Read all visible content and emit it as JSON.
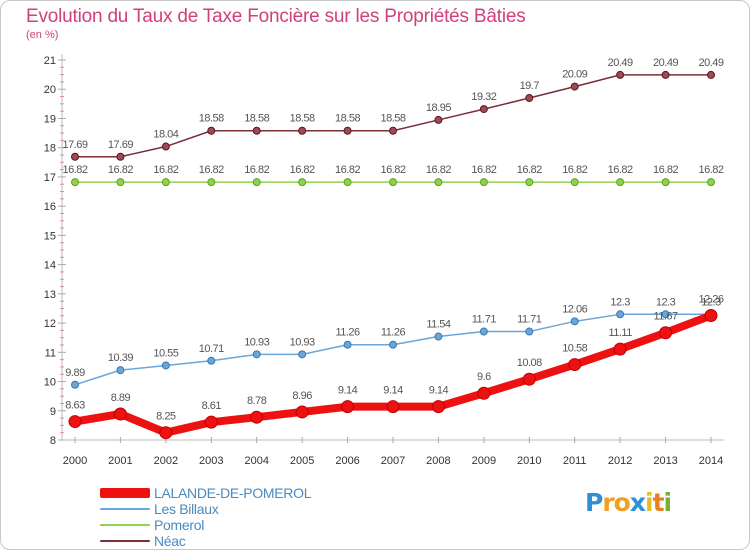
{
  "header": {
    "title": "Evolution du Taux de Taxe Foncière sur les Propriétés Bâties",
    "unit": "(en %)"
  },
  "logo": {
    "letters": [
      "P",
      "r",
      "o",
      "x",
      "i",
      "t",
      "i"
    ],
    "colors": [
      "#2d8fd5",
      "#f0a020",
      "#f0a020",
      "#2d8fd5",
      "#e2c020",
      "#e88020",
      "#7ab030"
    ]
  },
  "chart_data": {
    "type": "line",
    "title": "Evolution du Taux de Taxe Foncière sur les Propriétés Bâties",
    "ylabel": "(en %)",
    "xlabel": "",
    "x": [
      "2000",
      "2001",
      "2002",
      "2003",
      "2004",
      "2005",
      "2006",
      "2007",
      "2008",
      "2009",
      "2010",
      "2011",
      "2012",
      "2013",
      "2014"
    ],
    "ylim": [
      8,
      21
    ],
    "yticks": [
      "8",
      "9",
      "10",
      "11",
      "12",
      "13",
      "14",
      "15",
      "16",
      "17",
      "18",
      "19",
      "20",
      "21"
    ],
    "grid": false,
    "legend_position": "bottom-left",
    "series": [
      {
        "name": "LALANDE-DE-POMEROL",
        "color": "#ee1111",
        "values": [
          8.63,
          8.89,
          8.25,
          8.61,
          8.78,
          8.96,
          9.14,
          9.14,
          9.14,
          9.6,
          10.08,
          10.58,
          11.11,
          11.67,
          12.26
        ],
        "labels": [
          "8.63",
          "8.89",
          "8.25",
          "8.61",
          "8.78",
          "8.96",
          "9.14",
          "9.14",
          "9.14",
          "9.6",
          "10.08",
          "10.58",
          "11.11",
          "11.67",
          "12.26"
        ]
      },
      {
        "name": "Les Billaux",
        "color": "#6aa6d8",
        "values": [
          9.89,
          10.39,
          10.55,
          10.71,
          10.93,
          10.93,
          11.26,
          11.26,
          11.54,
          11.71,
          11.71,
          12.06,
          12.3,
          12.3,
          12.3
        ],
        "labels": [
          "9.89",
          "10.39",
          "10.55",
          "10.71",
          "10.93",
          "10.93",
          "11.26",
          "11.26",
          "11.54",
          "11.71",
          "11.71",
          "12.06",
          "12.3",
          "12.3",
          "12.3"
        ]
      },
      {
        "name": "Pomerol",
        "color": "#8fd34a",
        "values": [
          16.82,
          16.82,
          16.82,
          16.82,
          16.82,
          16.82,
          16.82,
          16.82,
          16.82,
          16.82,
          16.82,
          16.82,
          16.82,
          16.82,
          16.82
        ],
        "labels": [
          "16.82",
          "16.82",
          "16.82",
          "16.82",
          "16.82",
          "16.82",
          "16.82",
          "16.82",
          "16.82",
          "16.82",
          "16.82",
          "16.82",
          "16.82",
          "16.82",
          "16.82"
        ]
      },
      {
        "name": "Néac",
        "color": "#7a2e38",
        "values": [
          17.69,
          17.69,
          18.04,
          18.58,
          18.58,
          18.58,
          18.58,
          18.58,
          18.95,
          19.32,
          19.7,
          20.09,
          20.49,
          20.49,
          20.49
        ],
        "labels": [
          "17.69",
          "17.69",
          "18.04",
          "18.58",
          "18.58",
          "18.58",
          "18.58",
          "18.58",
          "18.95",
          "19.32",
          "19.7",
          "20.09",
          "20.49",
          "20.49",
          "20.49"
        ]
      }
    ]
  }
}
